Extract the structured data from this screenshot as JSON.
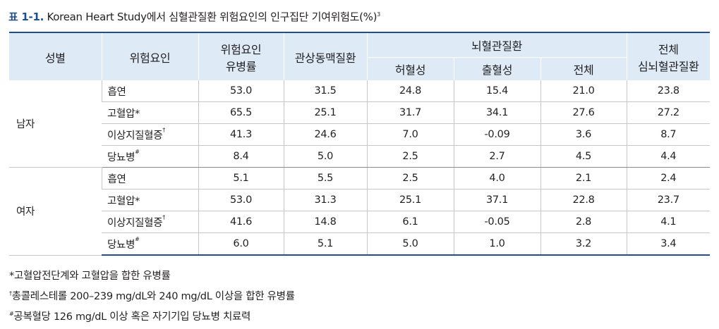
{
  "caption": {
    "label": "표 1-1.",
    "title": " Korean Heart Study에서 심혈관질환 위험요인의 인구집단 기여위험도(%)",
    "sup": "3"
  },
  "headers": {
    "sex": "성별",
    "risk": "위험요인",
    "prevalence_line1": "위험요인",
    "prevalence_line2": "유병률",
    "coronary": "관상동맥질환",
    "cerebro": "뇌혈관질환",
    "ischemic": "허혈성",
    "hemorrhagic": "출혈성",
    "cerebro_total": "전체",
    "total_line1": "전체",
    "total_line2": "심뇌혈관질환"
  },
  "groups": [
    {
      "sex": "남자",
      "rows": [
        {
          "risk": "흡연",
          "mark": "",
          "values": [
            "53.0",
            "31.5",
            "24.8",
            "15.4",
            "21.0",
            "23.8"
          ]
        },
        {
          "risk": "고혈압",
          "mark": "*",
          "values": [
            "65.5",
            "25.1",
            "31.7",
            "34.1",
            "27.6",
            "27.2"
          ]
        },
        {
          "risk": "이상지질혈증",
          "mark": "†",
          "values": [
            "41.3",
            "24.6",
            "7.0",
            "-0.09",
            "3.6",
            "8.7"
          ]
        },
        {
          "risk": "당뇨병",
          "mark": "#",
          "values": [
            "8.4",
            "5.0",
            "2.5",
            "2.7",
            "4.5",
            "4.4"
          ]
        }
      ]
    },
    {
      "sex": "여자",
      "rows": [
        {
          "risk": "흡연",
          "mark": "",
          "values": [
            "5.1",
            "5.5",
            "2.5",
            "4.0",
            "2.1",
            "2.4"
          ]
        },
        {
          "risk": "고혈압",
          "mark": "*",
          "values": [
            "53.0",
            "31.3",
            "25.1",
            "37.1",
            "22.8",
            "23.7"
          ]
        },
        {
          "risk": "이상지질혈증",
          "mark": "†",
          "values": [
            "41.6",
            "14.8",
            "6.1",
            "-0.05",
            "2.8",
            "4.1"
          ]
        },
        {
          "risk": "당뇨병",
          "mark": "#",
          "values": [
            "6.0",
            "5.1",
            "5.0",
            "1.0",
            "3.2",
            "3.4"
          ]
        }
      ]
    }
  ],
  "notes": [
    {
      "mark": "*",
      "text": "고혈압전단계와 고혈압을 합한 유병률"
    },
    {
      "mark": "†",
      "text": "총콜레스테롤 200–239 mg/dL와 240 mg/dL 이상을 합한 유병률"
    },
    {
      "mark": "#",
      "text": "공복혈당 126 mg/dL 이상 혹은 자기기입 당뇨병 치료력"
    }
  ],
  "colors": {
    "accent": "#1f4e8c",
    "header_bg": "#deebf7",
    "rule": "#c6c6c6"
  }
}
